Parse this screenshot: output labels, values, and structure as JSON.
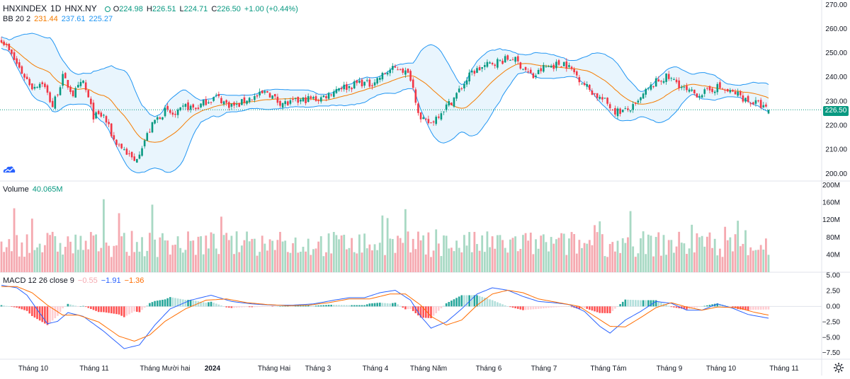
{
  "header": {
    "symbol": "HNXINDEX",
    "interval": "1D",
    "exchange": "HNX.NY",
    "open_label": "O",
    "open": "224.98",
    "high_label": "H",
    "high": "226.51",
    "low_label": "L",
    "low": "224.71",
    "close_label": "C",
    "close": "226.50",
    "change": "+1.00 (+0.44%)"
  },
  "bb_legend": {
    "name": "BB 20 2",
    "basis": "231.44",
    "upper": "237.61",
    "lower": "225.27"
  },
  "volume_legend": {
    "name": "Volume",
    "value": "40.065M"
  },
  "macd_legend": {
    "name": "MACD 12 26 close 9",
    "hist": "−0.55",
    "macd": "−1.91",
    "signal": "−1.36"
  },
  "last_price_tag": "226.50",
  "price_axis": [
    "270.00",
    "260.00",
    "250.00",
    "240.00",
    "230.00",
    "220.00",
    "210.00",
    "200.00"
  ],
  "volume_axis": [
    "200M",
    "160M",
    "120M",
    "80M",
    "40M"
  ],
  "macd_axis": [
    "5.00",
    "2.50",
    "0.00",
    "−2.50",
    "−5.00",
    "−7.50"
  ],
  "time_axis": [
    {
      "label": "Tháng 10",
      "bold": false
    },
    {
      "label": "Tháng 11",
      "bold": false
    },
    {
      "label": "Tháng Mười hai",
      "bold": false
    },
    {
      "label": "2024",
      "bold": true
    },
    {
      "label": "Tháng Hai",
      "bold": false
    },
    {
      "label": "Tháng 3",
      "bold": false
    },
    {
      "label": "Tháng 4",
      "bold": false
    },
    {
      "label": "Tháng Năm",
      "bold": false
    },
    {
      "label": "Tháng 6",
      "bold": false
    },
    {
      "label": "Tháng 7",
      "bold": false
    },
    {
      "label": "Tháng Tám",
      "bold": false
    },
    {
      "label": "Tháng 9",
      "bold": false
    },
    {
      "label": "Tháng 10",
      "bold": false
    },
    {
      "label": "Tháng 11",
      "bold": false
    }
  ],
  "colors": {
    "up": "#089981",
    "down": "#f23645",
    "vol_up": "#a8d9c4",
    "vol_down": "#f5a9b0",
    "bb_band": "#2196f3",
    "bb_basis": "#f57c00",
    "bb_fill": "#e3f2fd",
    "macd_line": "#2962ff",
    "signal_line": "#ff6d00",
    "grid": "#e6e8ec",
    "text": "#131722"
  },
  "chart_data": {
    "type": "candlestick",
    "symbol": "HNXINDEX",
    "interval": "1D",
    "price_range": [
      197,
      272
    ],
    "close_path": [
      [
        0,
        256
      ],
      [
        4,
        249
      ],
      [
        8,
        242
      ],
      [
        12,
        236
      ],
      [
        16,
        238
      ],
      [
        20,
        228
      ],
      [
        24,
        240
      ],
      [
        28,
        233
      ],
      [
        32,
        238
      ],
      [
        36,
        224
      ],
      [
        40,
        224
      ],
      [
        44,
        214
      ],
      [
        48,
        210
      ],
      [
        52,
        205
      ],
      [
        56,
        214
      ],
      [
        60,
        222
      ],
      [
        64,
        226
      ],
      [
        68,
        224
      ],
      [
        72,
        228
      ],
      [
        76,
        227
      ],
      [
        80,
        230
      ],
      [
        84,
        232
      ],
      [
        88,
        229
      ],
      [
        92,
        228
      ],
      [
        96,
        231
      ],
      [
        100,
        232
      ],
      [
        104,
        234
      ],
      [
        108,
        230
      ],
      [
        112,
        229
      ],
      [
        116,
        230
      ],
      [
        120,
        231
      ],
      [
        124,
        231
      ],
      [
        128,
        233
      ],
      [
        132,
        236
      ],
      [
        136,
        236
      ],
      [
        140,
        238
      ],
      [
        144,
        237
      ],
      [
        148,
        240
      ],
      [
        152,
        243
      ],
      [
        156,
        244
      ],
      [
        160,
        240
      ],
      [
        164,
        222
      ],
      [
        168,
        221
      ],
      [
        172,
        226
      ],
      [
        176,
        230
      ],
      [
        180,
        236
      ],
      [
        184,
        242
      ],
      [
        188,
        244
      ],
      [
        192,
        246
      ],
      [
        196,
        247
      ],
      [
        200,
        248
      ],
      [
        204,
        244
      ],
      [
        208,
        240
      ],
      [
        212,
        244
      ],
      [
        216,
        245
      ],
      [
        220,
        246
      ],
      [
        224,
        242
      ],
      [
        228,
        237
      ],
      [
        232,
        233
      ],
      [
        236,
        230
      ],
      [
        240,
        226
      ],
      [
        244,
        226
      ],
      [
        248,
        228
      ],
      [
        252,
        234
      ],
      [
        256,
        238
      ],
      [
        260,
        240
      ],
      [
        264,
        238
      ],
      [
        268,
        234
      ],
      [
        272,
        233
      ],
      [
        276,
        234
      ],
      [
        280,
        236
      ],
      [
        284,
        234
      ],
      [
        288,
        233
      ],
      [
        292,
        230
      ],
      [
        296,
        229
      ],
      [
        300,
        226
      ]
    ],
    "volume_range": [
      0,
      200
    ],
    "volume_unit": "M",
    "macd_range": [
      -8.5,
      5.5
    ],
    "macd_path": [
      [
        0,
        3.4
      ],
      [
        6,
        3.0
      ],
      [
        10,
        1.8
      ],
      [
        14,
        -0.5
      ],
      [
        18,
        -2.8
      ],
      [
        22,
        -2.4
      ],
      [
        26,
        -1.0
      ],
      [
        32,
        -1.6
      ],
      [
        40,
        -4.0
      ],
      [
        48,
        -6.8
      ],
      [
        54,
        -6.2
      ],
      [
        60,
        -3.0
      ],
      [
        66,
        -0.4
      ],
      [
        74,
        1.0
      ],
      [
        82,
        1.8
      ],
      [
        90,
        0.8
      ],
      [
        98,
        0.4
      ],
      [
        106,
        0.2
      ],
      [
        114,
        0.2
      ],
      [
        122,
        0.4
      ],
      [
        130,
        1.0
      ],
      [
        136,
        1.4
      ],
      [
        142,
        1.4
      ],
      [
        148,
        2.2
      ],
      [
        154,
        2.6
      ],
      [
        160,
        1.0
      ],
      [
        164,
        -1.6
      ],
      [
        168,
        -3.5
      ],
      [
        174,
        -2.5
      ],
      [
        180,
        -0.4
      ],
      [
        186,
        2.0
      ],
      [
        192,
        3.0
      ],
      [
        198,
        2.6
      ],
      [
        204,
        1.6
      ],
      [
        210,
        0.8
      ],
      [
        216,
        0.6
      ],
      [
        222,
        0.3
      ],
      [
        228,
        -0.8
      ],
      [
        234,
        -3.2
      ],
      [
        238,
        -4.3
      ],
      [
        244,
        -2.2
      ],
      [
        250,
        -0.8
      ],
      [
        256,
        0.8
      ],
      [
        262,
        0.5
      ],
      [
        268,
        -0.6
      ],
      [
        274,
        -0.6
      ],
      [
        280,
        0.4
      ],
      [
        286,
        -0.3
      ],
      [
        292,
        -1.3
      ],
      [
        296,
        -1.6
      ],
      [
        300,
        -1.9
      ]
    ],
    "signal_path": [
      [
        0,
        3.2
      ],
      [
        6,
        3.2
      ],
      [
        12,
        2.2
      ],
      [
        18,
        0.2
      ],
      [
        24,
        -1.4
      ],
      [
        30,
        -1.4
      ],
      [
        38,
        -2.5
      ],
      [
        46,
        -4.8
      ],
      [
        52,
        -5.6
      ],
      [
        58,
        -4.6
      ],
      [
        64,
        -2.4
      ],
      [
        72,
        -0.4
      ],
      [
        80,
        1.0
      ],
      [
        88,
        1.2
      ],
      [
        96,
        0.6
      ],
      [
        104,
        0.3
      ],
      [
        112,
        0.1
      ],
      [
        120,
        0.2
      ],
      [
        128,
        0.6
      ],
      [
        136,
        1.2
      ],
      [
        144,
        1.2
      ],
      [
        152,
        2.0
      ],
      [
        158,
        2.0
      ],
      [
        164,
        0.2
      ],
      [
        168,
        -1.6
      ],
      [
        174,
        -3.0
      ],
      [
        180,
        -2.2
      ],
      [
        186,
        0.2
      ],
      [
        192,
        2.0
      ],
      [
        198,
        2.6
      ],
      [
        204,
        2.2
      ],
      [
        210,
        1.2
      ],
      [
        218,
        0.6
      ],
      [
        226,
        0.0
      ],
      [
        232,
        -1.6
      ],
      [
        238,
        -3.2
      ],
      [
        244,
        -3.3
      ],
      [
        250,
        -1.8
      ],
      [
        256,
        -0.2
      ],
      [
        262,
        0.6
      ],
      [
        268,
        -0.1
      ],
      [
        274,
        -0.6
      ],
      [
        280,
        -0.1
      ],
      [
        288,
        -0.2
      ],
      [
        294,
        -0.9
      ],
      [
        300,
        -1.4
      ]
    ],
    "last": {
      "open": 224.98,
      "high": 226.51,
      "low": 224.71,
      "close": 226.5,
      "volume_M": 40.065
    },
    "bollinger_last": {
      "basis": 231.44,
      "upper": 237.61,
      "lower": 225.27
    },
    "macd_last": {
      "histogram": -0.55,
      "macd": -1.91,
      "signal": -1.36
    }
  }
}
